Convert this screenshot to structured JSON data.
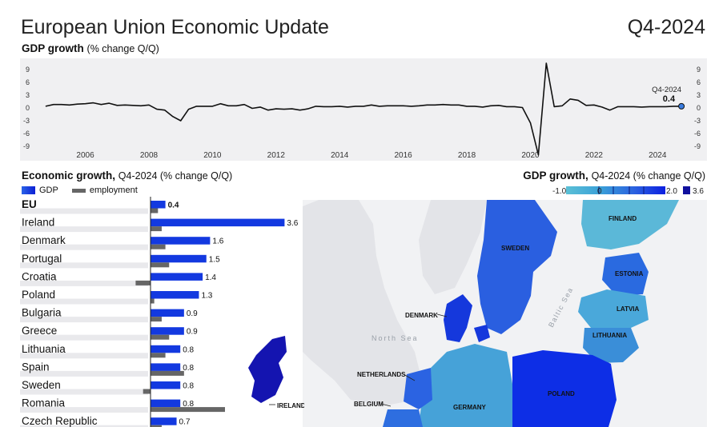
{
  "header": {
    "title": "European Union Economic Update",
    "period": "Q4-2024"
  },
  "gdp_panel": {
    "title": "GDP growth",
    "unit": "(% change Q/Q)",
    "last_label": "Q4-2024",
    "last_value": "0.4"
  },
  "econ_panel": {
    "title": "Economic growth,",
    "subtitle": "Q4-2024 (% change Q/Q)",
    "legend_gdp": "GDP",
    "legend_emp": "employment"
  },
  "map_panel": {
    "title": "GDP growth,",
    "subtitle": "Q4-2024 (% change Q/Q)",
    "scale_labels": [
      "-1.0",
      "0",
      "2.0",
      "3.6"
    ],
    "sea_labels": [
      "North Sea",
      "Baltic Sea"
    ],
    "country_labels": [
      "FINLAND",
      "SWEDEN",
      "ESTONIA",
      "LATVIA",
      "LITHUANIA",
      "DENMARK",
      "NETHERLANDS",
      "BELGIUM",
      "GERMANY",
      "POLAND",
      "IRELAND"
    ]
  },
  "colors": {
    "gdp_bar": "#1339e0",
    "emp_bar": "#666666",
    "line": "#111111",
    "highlight": "#3b7de0"
  },
  "chart_data": [
    {
      "type": "line",
      "title": "GDP growth",
      "ylabel": "% change Q/Q",
      "ylim": [
        -9,
        9
      ],
      "yticks": [
        9,
        6,
        3,
        0,
        -3,
        -6,
        -9
      ],
      "xticks": [
        "2006",
        "2008",
        "2010",
        "2012",
        "2014",
        "2016",
        "2018",
        "2020",
        "2022",
        "2024"
      ],
      "xlim": [
        2004.5,
        2025.0
      ],
      "x": [
        2004.75,
        2005.0,
        2005.25,
        2005.5,
        2005.75,
        2006.0,
        2006.25,
        2006.5,
        2006.75,
        2007.0,
        2007.25,
        2007.5,
        2007.75,
        2008.0,
        2008.25,
        2008.5,
        2008.75,
        2009.0,
        2009.25,
        2009.5,
        2009.75,
        2010.0,
        2010.25,
        2010.5,
        2010.75,
        2011.0,
        2011.25,
        2011.5,
        2011.75,
        2012.0,
        2012.25,
        2012.5,
        2012.75,
        2013.0,
        2013.25,
        2013.5,
        2013.75,
        2014.0,
        2014.25,
        2014.5,
        2014.75,
        2015.0,
        2015.25,
        2015.5,
        2015.75,
        2016.0,
        2016.25,
        2016.5,
        2016.75,
        2017.0,
        2017.25,
        2017.5,
        2017.75,
        2018.0,
        2018.25,
        2018.5,
        2018.75,
        2019.0,
        2019.25,
        2019.5,
        2019.75,
        2020.0,
        2020.25,
        2020.5,
        2020.75,
        2021.0,
        2021.25,
        2021.5,
        2021.75,
        2022.0,
        2022.25,
        2022.5,
        2022.75,
        2023.0,
        2023.25,
        2023.5,
        2023.75,
        2024.0,
        2024.25,
        2024.5,
        2024.75
      ],
      "y": [
        0.4,
        0.8,
        0.8,
        0.7,
        0.9,
        1.0,
        1.2,
        0.8,
        1.1,
        0.6,
        0.7,
        0.6,
        0.5,
        0.7,
        -0.3,
        -0.5,
        -2.0,
        -3.0,
        -0.3,
        0.4,
        0.4,
        0.4,
        1.0,
        0.5,
        0.5,
        0.8,
        -0.1,
        0.2,
        -0.5,
        -0.2,
        -0.3,
        -0.2,
        -0.5,
        -0.2,
        0.4,
        0.3,
        0.3,
        0.4,
        0.2,
        0.4,
        0.4,
        0.7,
        0.4,
        0.5,
        0.5,
        0.5,
        0.4,
        0.5,
        0.7,
        0.7,
        0.8,
        0.7,
        0.7,
        0.4,
        0.4,
        0.2,
        0.5,
        0.6,
        0.3,
        0.3,
        0.1,
        -3.5,
        -11.0,
        10.5,
        0.3,
        0.5,
        2.1,
        1.8,
        0.6,
        0.7,
        0.2,
        -0.5,
        0.3,
        0.3,
        0.3,
        0.2,
        0.3,
        0.3,
        0.3,
        0.4,
        0.4
      ]
    },
    {
      "type": "bar",
      "title": "Economic growth, Q4-2024 (% change Q/Q)",
      "categories": [
        "EU",
        "Ireland",
        "Denmark",
        "Portugal",
        "Croatia",
        "Poland",
        "Bulgaria",
        "Greece",
        "Lithuania",
        "Spain",
        "Sweden",
        "Romania",
        "Czech Republic"
      ],
      "series": [
        {
          "name": "GDP",
          "values": [
            0.4,
            3.6,
            1.6,
            1.5,
            1.4,
            1.3,
            0.9,
            0.9,
            0.8,
            0.8,
            0.8,
            0.8,
            0.7
          ]
        },
        {
          "name": "employment",
          "values": [
            0.2,
            0.3,
            0.4,
            0.5,
            -0.4,
            0.1,
            0.3,
            0.5,
            0.4,
            0.9,
            -0.2,
            2.0,
            0.3
          ]
        }
      ],
      "value_labels": [
        "0.4",
        "3.6",
        "1.6",
        "1.5",
        "1.4",
        "1.3",
        "0.9",
        "0.9",
        "0.8",
        "0.8",
        "0.8",
        "0.8",
        "0.7"
      ],
      "xlim": [
        -1.0,
        4.0
      ]
    }
  ]
}
